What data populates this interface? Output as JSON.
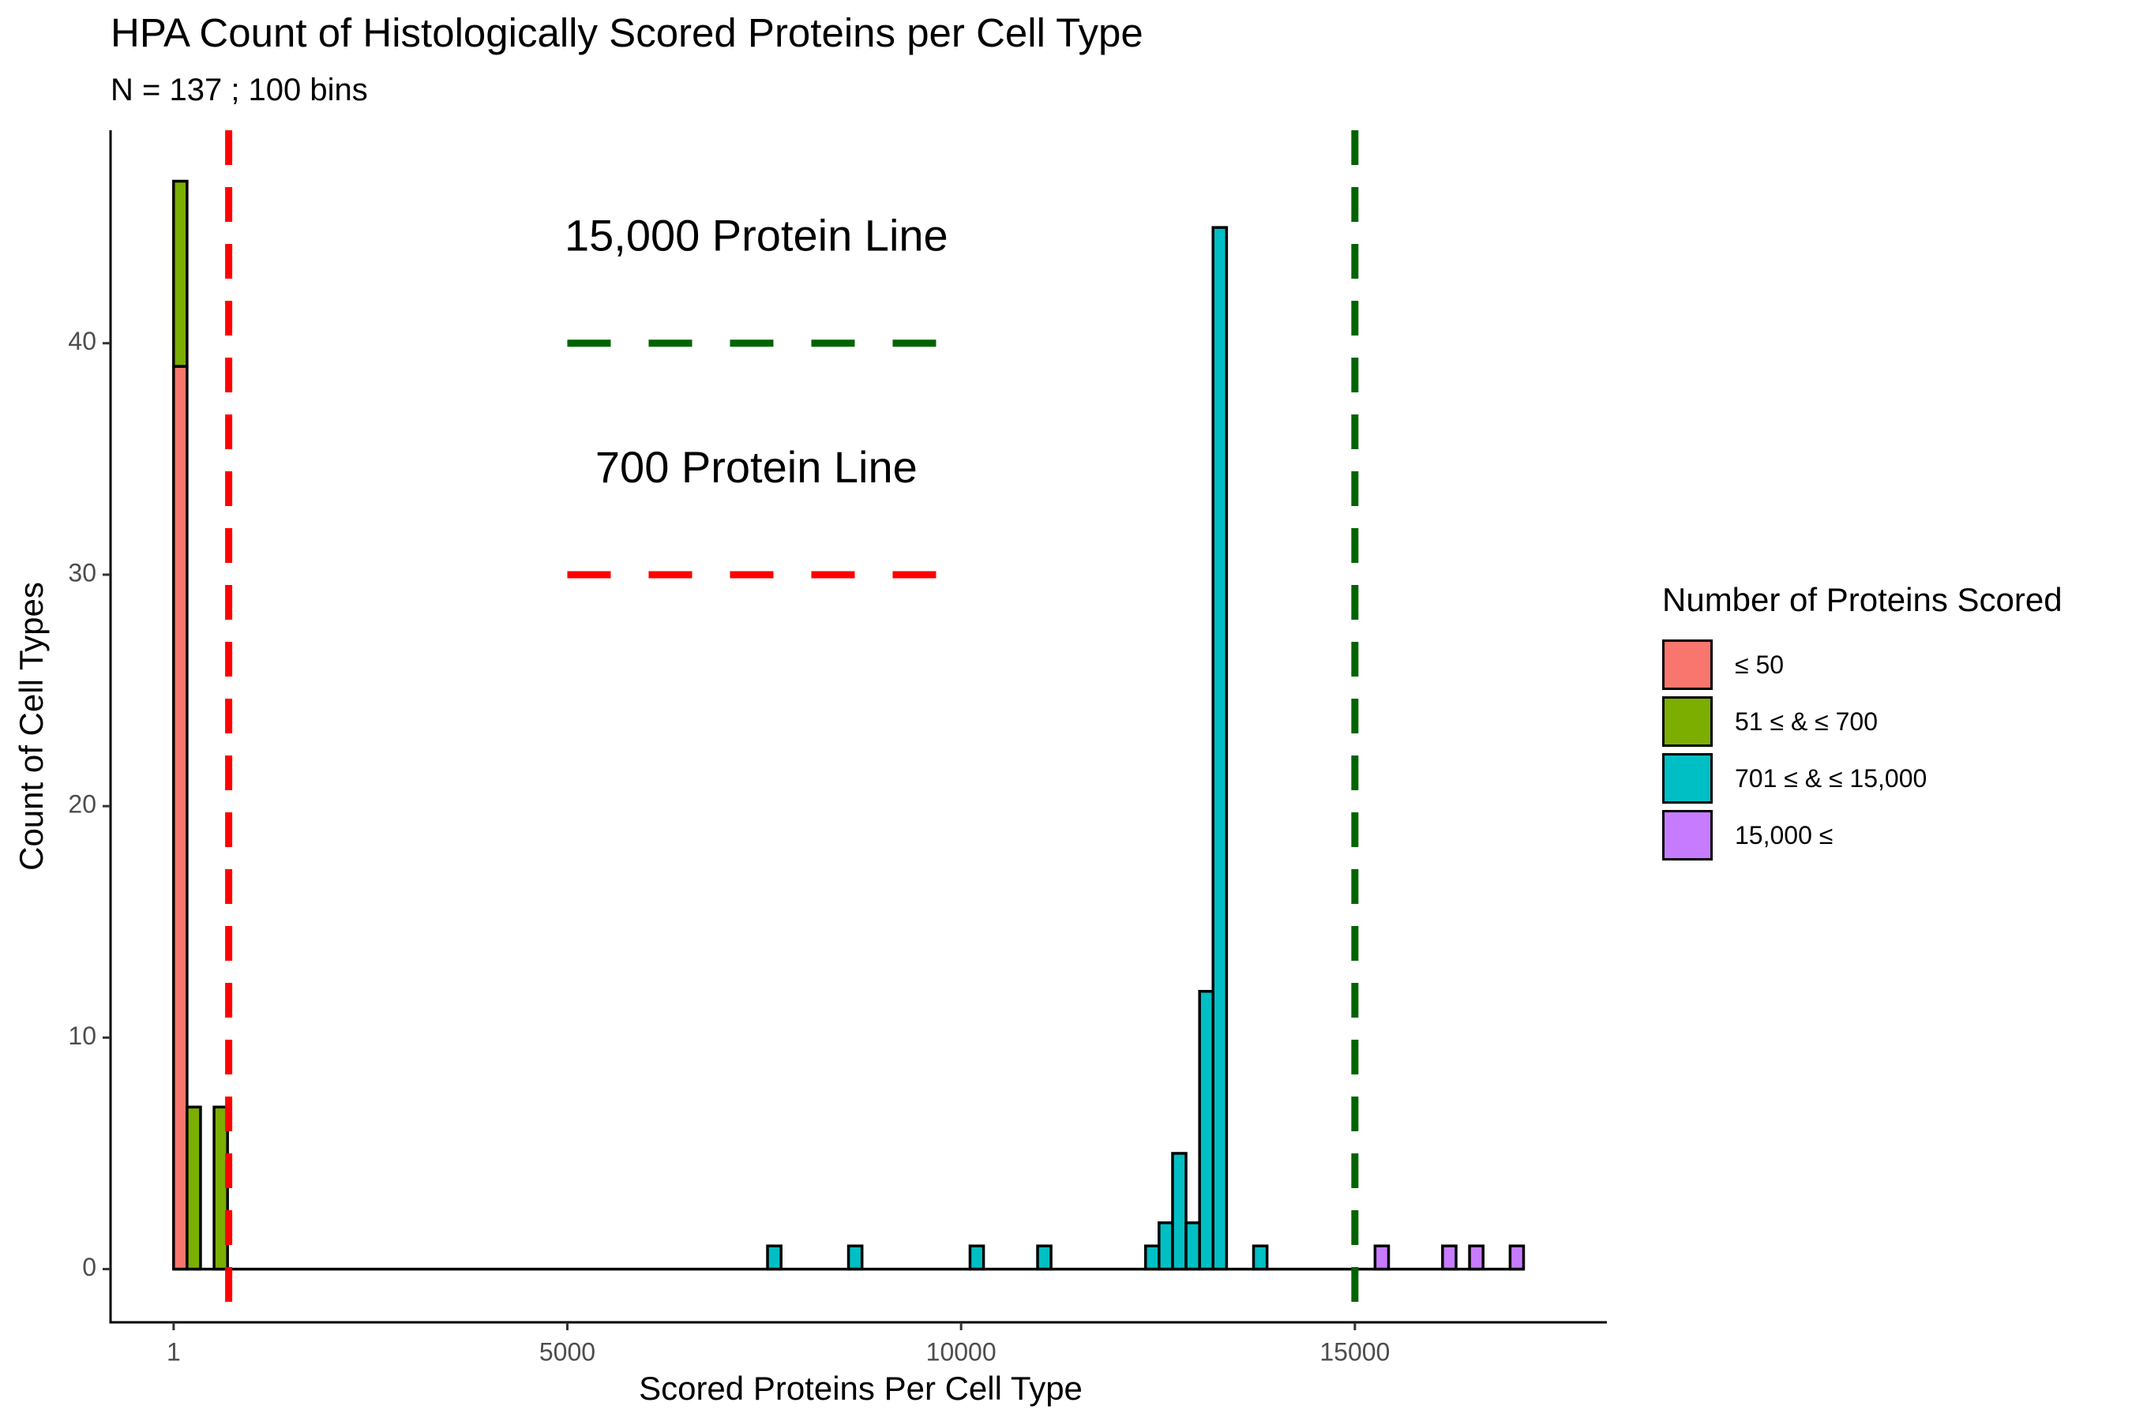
{
  "chart_data": {
    "type": "bar",
    "title": "HPA Count of Histologically Scored Proteins per Cell Type",
    "subtitle": "N =  137 ; 100 bins",
    "xlabel": "Scored Proteins Per Cell Type",
    "ylabel": "Count of Cell Types",
    "xlim": [
      -800,
      18200
    ],
    "ylim": [
      -2.3,
      49.2
    ],
    "x_ticks": [
      1,
      5000,
      10000,
      15000
    ],
    "x_tick_labels": [
      "1",
      "5000",
      "10000",
      "15000"
    ],
    "y_ticks": [
      0,
      10,
      20,
      30,
      40
    ],
    "y_tick_labels": [
      "0",
      "10",
      "20",
      "30",
      "40"
    ],
    "grid": false,
    "legend_position": "right",
    "bin_width": 171.4,
    "bins_shown": "bins with non-zero count; histogram baseline spans 0 to 17142",
    "legend": {
      "title": "Number of Proteins Scored",
      "items": [
        {
          "label": "≤ 50",
          "color": "#F8766D"
        },
        {
          "label": "51 ≤ & ≤ 700",
          "color": "#7CAE00"
        },
        {
          "label": "701 ≤ & ≤ 15,000",
          "color": "#00BFC4"
        },
        {
          "label": "15,000 ≤",
          "color": "#C77CFF"
        }
      ]
    },
    "bins": [
      {
        "x_start": 0,
        "x_end": 171.4,
        "segments": [
          {
            "group": "≤ 50",
            "count": 39
          },
          {
            "group": "51 ≤ & ≤ 700",
            "count": 8
          }
        ]
      },
      {
        "x_start": 171.4,
        "x_end": 342.8,
        "segments": [
          {
            "group": "51 ≤ & ≤ 700",
            "count": 7
          }
        ]
      },
      {
        "x_start": 514.3,
        "x_end": 685.7,
        "segments": [
          {
            "group": "51 ≤ & ≤ 700",
            "count": 7
          }
        ]
      },
      {
        "x_start": 7542,
        "x_end": 7714,
        "segments": [
          {
            "group": "701 ≤ & ≤ 15,000",
            "count": 1
          }
        ]
      },
      {
        "x_start": 8570,
        "x_end": 8742,
        "segments": [
          {
            "group": "701 ≤ & ≤ 15,000",
            "count": 1
          }
        ]
      },
      {
        "x_start": 10113,
        "x_end": 10285,
        "segments": [
          {
            "group": "701 ≤ & ≤ 15,000",
            "count": 1
          }
        ]
      },
      {
        "x_start": 10971,
        "x_end": 11142,
        "segments": [
          {
            "group": "701 ≤ & ≤ 15,000",
            "count": 1
          }
        ]
      },
      {
        "x_start": 12342,
        "x_end": 12513,
        "segments": [
          {
            "group": "701 ≤ & ≤ 15,000",
            "count": 1
          }
        ]
      },
      {
        "x_start": 12513,
        "x_end": 12685,
        "segments": [
          {
            "group": "701 ≤ & ≤ 15,000",
            "count": 2
          }
        ]
      },
      {
        "x_start": 12685,
        "x_end": 12856,
        "segments": [
          {
            "group": "701 ≤ & ≤ 15,000",
            "count": 5
          }
        ]
      },
      {
        "x_start": 12856,
        "x_end": 13028,
        "segments": [
          {
            "group": "701 ≤ & ≤ 15,000",
            "count": 2
          }
        ]
      },
      {
        "x_start": 13028,
        "x_end": 13199,
        "segments": [
          {
            "group": "701 ≤ & ≤ 15,000",
            "count": 12
          }
        ]
      },
      {
        "x_start": 13199,
        "x_end": 13371,
        "segments": [
          {
            "group": "701 ≤ & ≤ 15,000",
            "count": 45
          }
        ]
      },
      {
        "x_start": 13713,
        "x_end": 13885,
        "segments": [
          {
            "group": "701 ≤ & ≤ 15,000",
            "count": 1
          }
        ]
      },
      {
        "x_start": 15256,
        "x_end": 15428,
        "segments": [
          {
            "group": "15,000 ≤",
            "count": 1
          }
        ]
      },
      {
        "x_start": 16113,
        "x_end": 16285,
        "segments": [
          {
            "group": "15,000 ≤",
            "count": 1
          }
        ]
      },
      {
        "x_start": 16456,
        "x_end": 16628,
        "segments": [
          {
            "group": "15,000 ≤",
            "count": 1
          }
        ]
      },
      {
        "x_start": 16971,
        "x_end": 17142,
        "segments": [
          {
            "group": "15,000 ≤",
            "count": 1
          }
        ]
      }
    ],
    "reference_lines": [
      {
        "x": 700,
        "color": "#FF0000",
        "style": "dashed"
      },
      {
        "x": 15000,
        "color": "#006400",
        "style": "dashed"
      }
    ],
    "annotations": [
      {
        "text": "15,000 Protein Line",
        "x": 7400,
        "y": 44.5
      },
      {
        "text": "700 Protein Line",
        "x": 7400,
        "y": 34.5
      }
    ],
    "annotation_segments": [
      {
        "x_start": 5000,
        "x_end": 9800,
        "y": 40,
        "color": "#006400",
        "style": "dashed"
      },
      {
        "x_start": 5000,
        "x_end": 9800,
        "y": 30,
        "color": "#FF0000",
        "style": "dashed"
      }
    ]
  }
}
